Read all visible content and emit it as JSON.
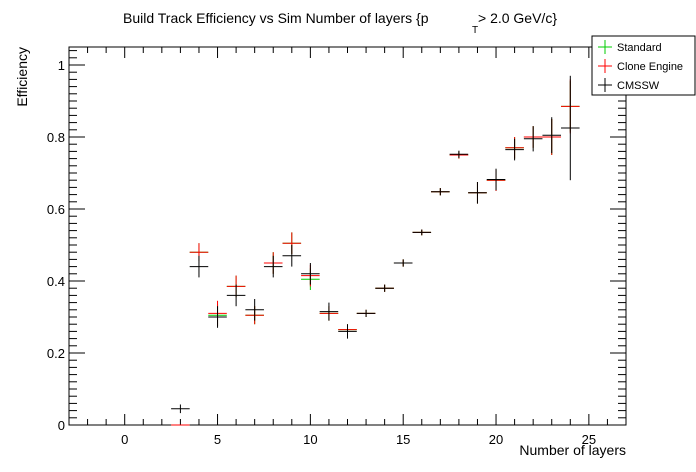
{
  "chart_data": {
    "type": "scatter",
    "title_main": "Build Track Efficiency vs Sim Number of layers {p",
    "title_sub": "T",
    "title_tail": " > 2.0 GeV/c}",
    "xlabel": "Number of layers",
    "ylabel": "Efficiency",
    "xlim": [
      -3,
      27
    ],
    "ylim": [
      0,
      1.05
    ],
    "x_ticks": [
      0,
      5,
      10,
      15,
      20,
      25
    ],
    "x_tick_labels": [
      "0",
      "5",
      "10",
      "15",
      "20",
      "25"
    ],
    "y_ticks": [
      0,
      0.2,
      0.4,
      0.6,
      0.8,
      1
    ],
    "y_tick_labels": [
      "0",
      "0.2",
      "0.4",
      "0.6",
      "0.8",
      "1"
    ],
    "legend_position": "top-right",
    "grid": false,
    "series": [
      {
        "name": "Standard",
        "color": "#00cc00",
        "x": [
          3,
          4,
          5,
          6,
          7,
          8,
          9,
          10,
          11,
          12,
          13,
          14,
          15,
          16,
          17,
          18,
          19,
          20,
          21,
          22,
          23,
          24
        ],
        "y": [
          0.0,
          0.48,
          0.305,
          0.385,
          0.305,
          0.45,
          0.505,
          0.405,
          0.31,
          0.265,
          0.31,
          0.38,
          0.45,
          0.535,
          0.648,
          0.75,
          0.645,
          0.68,
          0.77,
          0.8,
          0.8,
          0.885
        ],
        "yerr": [
          0,
          0.025,
          0.03,
          0.03,
          0.025,
          0.03,
          0.03,
          0.03,
          0.02,
          0.015,
          0.01,
          0.01,
          0.01,
          0.008,
          0.01,
          0.01,
          0.03,
          0.03,
          0.03,
          0.03,
          0.05,
          0.07
        ]
      },
      {
        "name": "Clone Engine",
        "color": "#ff0000",
        "x": [
          3,
          4,
          5,
          6,
          7,
          8,
          9,
          10,
          11,
          12,
          13,
          14,
          15,
          16,
          17,
          18,
          19,
          20,
          21,
          22,
          23,
          24
        ],
        "y": [
          0.0,
          0.48,
          0.31,
          0.385,
          0.305,
          0.45,
          0.505,
          0.415,
          0.31,
          0.265,
          0.31,
          0.38,
          0.45,
          0.535,
          0.648,
          0.75,
          0.645,
          0.68,
          0.77,
          0.8,
          0.8,
          0.885
        ],
        "yerr": [
          0,
          0.025,
          0.035,
          0.03,
          0.025,
          0.03,
          0.03,
          0.03,
          0.02,
          0.015,
          0.01,
          0.01,
          0.01,
          0.008,
          0.01,
          0.01,
          0.03,
          0.03,
          0.03,
          0.03,
          0.05,
          0.075
        ]
      },
      {
        "name": "CMSSW",
        "color": "#000000",
        "x": [
          3,
          4,
          5,
          6,
          7,
          8,
          9,
          10,
          11,
          12,
          13,
          14,
          15,
          16,
          17,
          18,
          19,
          20,
          21,
          22,
          23,
          24
        ],
        "y": [
          0.045,
          0.44,
          0.3,
          0.36,
          0.32,
          0.44,
          0.47,
          0.42,
          0.315,
          0.26,
          0.31,
          0.38,
          0.45,
          0.535,
          0.648,
          0.752,
          0.645,
          0.682,
          0.765,
          0.795,
          0.805,
          0.825
        ],
        "yerr": [
          0.012,
          0.03,
          0.03,
          0.03,
          0.03,
          0.03,
          0.03,
          0.03,
          0.025,
          0.02,
          0.01,
          0.01,
          0.01,
          0.008,
          0.01,
          0.01,
          0.03,
          0.03,
          0.03,
          0.035,
          0.05,
          0.145
        ]
      }
    ]
  }
}
